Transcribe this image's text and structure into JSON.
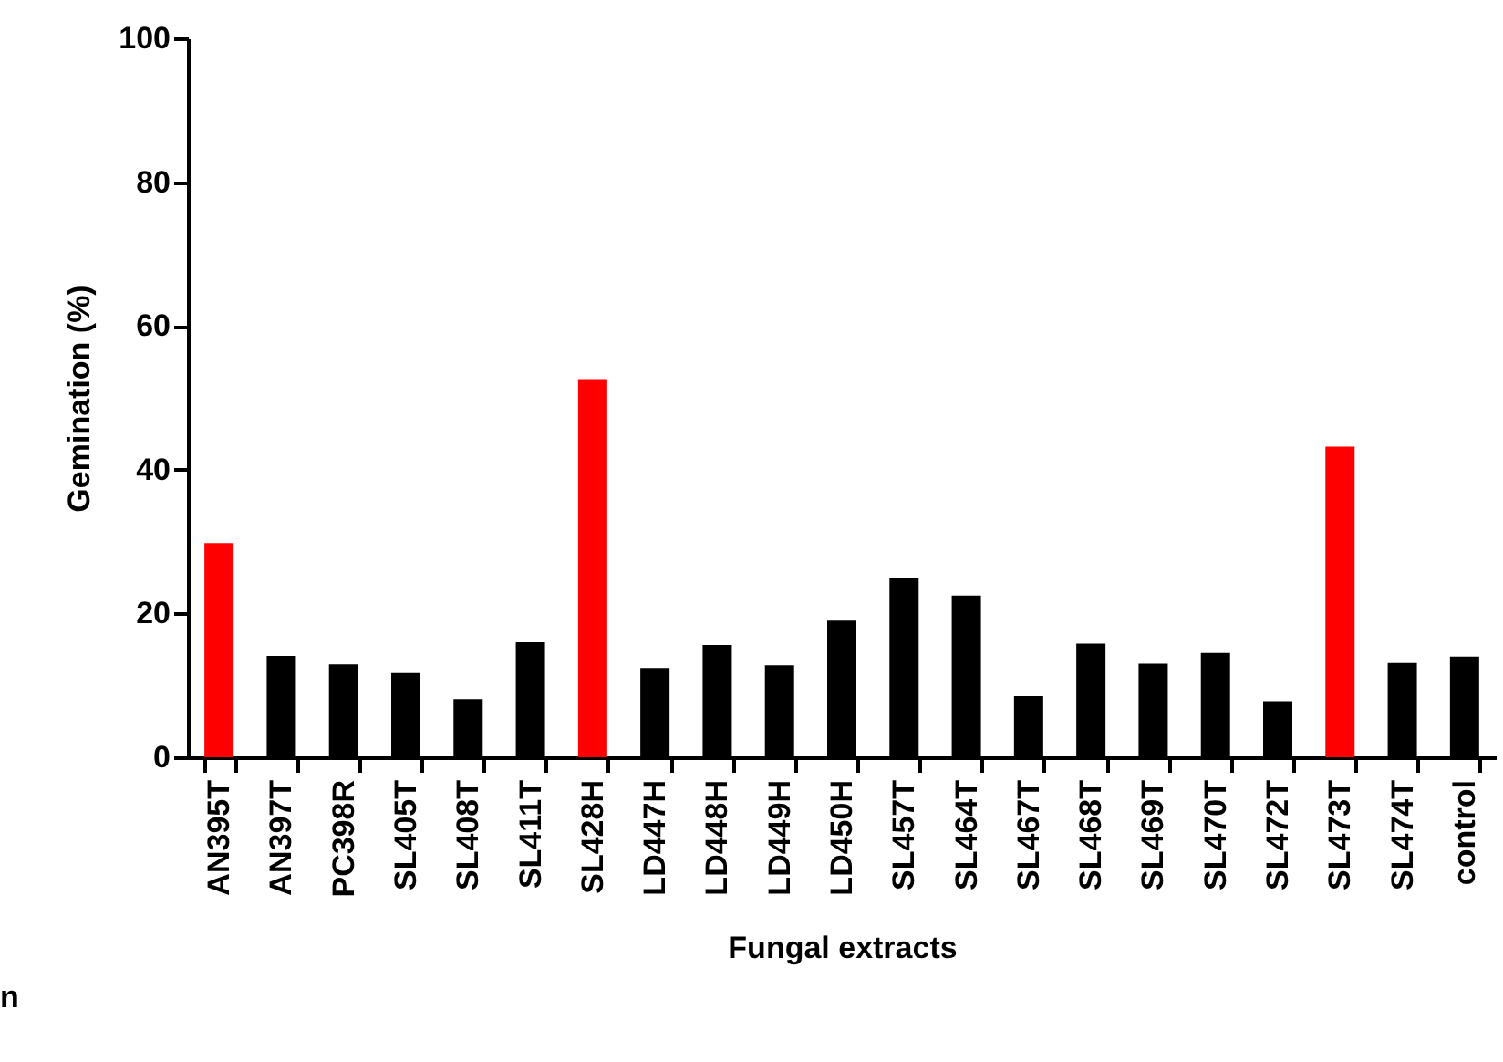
{
  "chart_data": {
    "type": "bar",
    "xlabel": "Fungal extracts",
    "ylabel": "Gemination (%)",
    "categories": [
      "AN395T",
      "AN397T",
      "PC398R",
      "SL405T",
      "SL408T",
      "SL411T",
      "SL428H",
      "LD447H",
      "LD448H",
      "LD449H",
      "LD450H",
      "SL457T",
      "SL464T",
      "SL467T",
      "SL468T",
      "SL469T",
      "SL470T",
      "SL472T",
      "SL473T",
      "SL474T",
      "control"
    ],
    "values": [
      29.8,
      14.1,
      12.9,
      11.7,
      8.1,
      16.0,
      52.6,
      12.4,
      15.6,
      12.8,
      19.0,
      25.0,
      22.5,
      8.5,
      15.8,
      13.0,
      14.5,
      7.8,
      43.2,
      13.1,
      14.0
    ],
    "colors": [
      "#ff0000",
      "#000000",
      "#000000",
      "#000000",
      "#000000",
      "#000000",
      "#ff0000",
      "#000000",
      "#000000",
      "#000000",
      "#000000",
      "#000000",
      "#000000",
      "#000000",
      "#000000",
      "#000000",
      "#000000",
      "#000000",
      "#ff0000",
      "#000000",
      "#000000"
    ],
    "ylim": [
      0,
      100
    ],
    "yticks": [
      0,
      20,
      40,
      60,
      80,
      100
    ],
    "grid": false,
    "annotations": [
      "n"
    ]
  }
}
